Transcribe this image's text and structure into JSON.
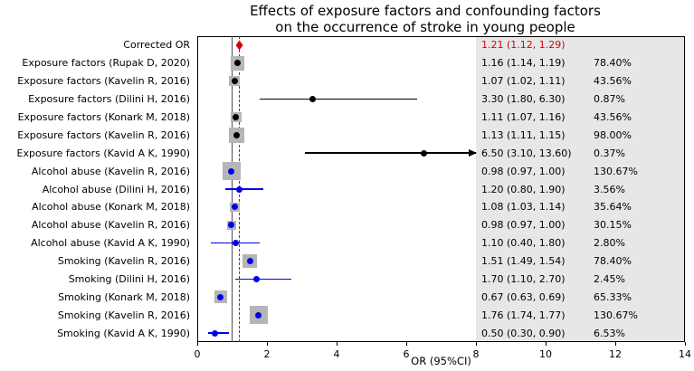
{
  "colors": {
    "summary": "#dd0000",
    "exposure": "#000000",
    "confounder": "#0000ee",
    "box": "#b5b5b5",
    "shade": "#e7e7e7",
    "null_line": "#4d4d4d"
  },
  "chart_data": {
    "type": "forest",
    "title": "Effects of exposure factors and confounding factors on the occurrence of stroke in young people",
    "title_lines": [
      "Effects of exposure factors and confounding factors",
      "on the occurrence of stroke in young people"
    ],
    "xlabel": "OR (95%CI)",
    "xlim": [
      0,
      14
    ],
    "xticks": [
      0,
      2,
      4,
      6,
      8,
      10,
      12,
      14
    ],
    "null_line": 1.0,
    "summary_line": 1.21,
    "shade_from": 8,
    "rows": [
      {
        "label": "Corrected OR",
        "group": "summary",
        "or": 1.21,
        "lo": 1.12,
        "hi": 1.29,
        "weight": null,
        "or_text": "1.21 (1.12, 1.29)",
        "weight_text": ""
      },
      {
        "label": "Exposure factors (Rupak D, 2020)",
        "group": "exposure",
        "or": 1.16,
        "lo": 1.14,
        "hi": 1.19,
        "weight": 78.4,
        "or_text": "1.16 (1.14, 1.19)",
        "weight_text": "78.40%"
      },
      {
        "label": "Exposure factors (Kavelin R, 2016)",
        "group": "exposure",
        "or": 1.07,
        "lo": 1.02,
        "hi": 1.11,
        "weight": 43.56,
        "or_text": "1.07 (1.02, 1.11)",
        "weight_text": "43.56%"
      },
      {
        "label": "Exposure factors (Dilini H, 2016)",
        "group": "exposure",
        "or": 3.3,
        "lo": 1.8,
        "hi": 6.3,
        "weight": 0.87,
        "or_text": "3.30 (1.80, 6.30)",
        "weight_text": "0.87%"
      },
      {
        "label": "Exposure factors (Konark M, 2018)",
        "group": "exposure",
        "or": 1.11,
        "lo": 1.07,
        "hi": 1.16,
        "weight": 43.56,
        "or_text": "1.11 (1.07, 1.16)",
        "weight_text": "43.56%"
      },
      {
        "label": "Exposure factors (Kavelin R, 2016)",
        "group": "exposure",
        "or": 1.13,
        "lo": 1.11,
        "hi": 1.15,
        "weight": 98.0,
        "or_text": "1.13 (1.11, 1.15)",
        "weight_text": "98.00%"
      },
      {
        "label": "Exposure factors (Kavid A K, 1990)",
        "group": "exposure",
        "or": 6.5,
        "lo": 3.1,
        "hi": 13.6,
        "weight": 0.37,
        "or_text": "6.50 (3.10, 13.60)",
        "weight_text": "0.37%"
      },
      {
        "label": "Alcohol abuse (Kavelin R, 2016)",
        "group": "confounder",
        "or": 0.98,
        "lo": 0.97,
        "hi": 1.0,
        "weight": 130.67,
        "or_text": "0.98 (0.97, 1.00)",
        "weight_text": "130.67%"
      },
      {
        "label": "Alcohol abuse (Dilini H, 2016)",
        "group": "confounder",
        "or": 1.2,
        "lo": 0.8,
        "hi": 1.9,
        "weight": 3.56,
        "or_text": "1.20 (0.80, 1.90)",
        "weight_text": "3.56%"
      },
      {
        "label": "Alcohol abuse (Konark M, 2018)",
        "group": "confounder",
        "or": 1.08,
        "lo": 1.03,
        "hi": 1.14,
        "weight": 35.64,
        "or_text": "1.08 (1.03, 1.14)",
        "weight_text": "35.64%"
      },
      {
        "label": "Alcohol abuse (Kavelin R, 2016)",
        "group": "confounder",
        "or": 0.98,
        "lo": 0.97,
        "hi": 1.0,
        "weight": 30.15,
        "or_text": "0.98 (0.97, 1.00)",
        "weight_text": "30.15%"
      },
      {
        "label": "Alcohol abuse (Kavid A K, 1990)",
        "group": "confounder",
        "or": 1.1,
        "lo": 0.4,
        "hi": 1.8,
        "weight": 2.8,
        "or_text": "1.10 (0.40, 1.80)",
        "weight_text": "2.80%"
      },
      {
        "label": "Smoking (Kavelin R, 2016)",
        "group": "confounder",
        "or": 1.51,
        "lo": 1.49,
        "hi": 1.54,
        "weight": 78.4,
        "or_text": "1.51 (1.49, 1.54)",
        "weight_text": "78.40%"
      },
      {
        "label": "Smoking (Dilini H, 2016)",
        "group": "confounder",
        "or": 1.7,
        "lo": 1.1,
        "hi": 2.7,
        "weight": 2.45,
        "or_text": "1.70 (1.10, 2.70)",
        "weight_text": "2.45%"
      },
      {
        "label": "Smoking (Konark M, 2018)",
        "group": "confounder",
        "or": 0.67,
        "lo": 0.63,
        "hi": 0.69,
        "weight": 65.33,
        "or_text": "0.67 (0.63, 0.69)",
        "weight_text": "65.33%"
      },
      {
        "label": "Smoking (Kavelin R, 2016)",
        "group": "confounder",
        "or": 1.76,
        "lo": 1.74,
        "hi": 1.77,
        "weight": 130.67,
        "or_text": "1.76 (1.74, 1.77)",
        "weight_text": "130.67%"
      },
      {
        "label": "Smoking (Kavid A K, 1990)",
        "group": "confounder",
        "or": 0.5,
        "lo": 0.3,
        "hi": 0.9,
        "weight": 6.53,
        "or_text": "0.50 (0.30, 0.90)",
        "weight_text": "6.53%"
      }
    ]
  }
}
